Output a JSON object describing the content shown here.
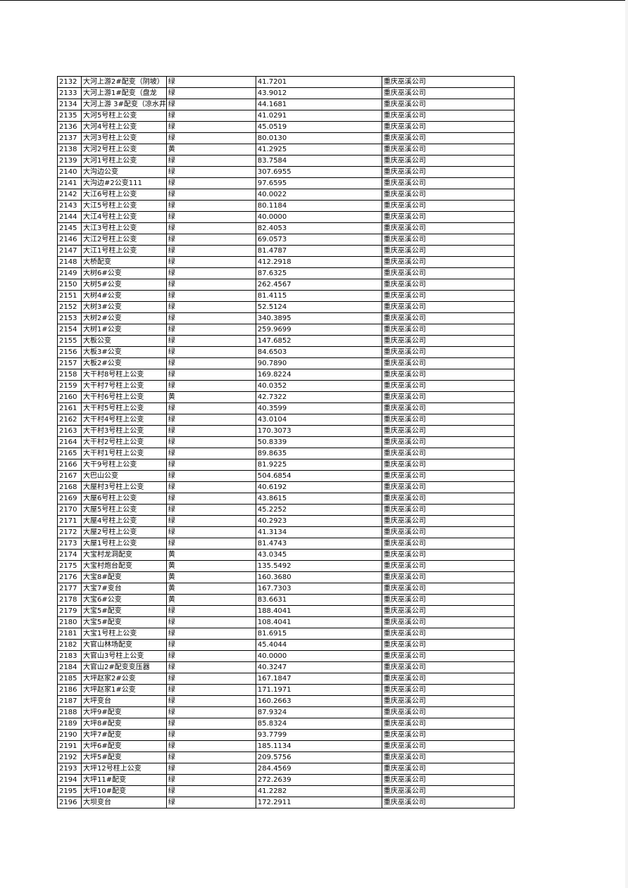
{
  "company": "重庆巫溪公司",
  "rows": [
    [
      "2132",
      "大河上游2#配变（阴坡）",
      "绿",
      "41.7201"
    ],
    [
      "2133",
      "大河上游1#配变（盘龙",
      "绿",
      "43.9012"
    ],
    [
      "2134",
      "大河上游 3#配变（凉水井",
      "绿",
      "44.1681"
    ],
    [
      "2135",
      "大河5号柱上公变",
      "绿",
      "41.0291"
    ],
    [
      "2136",
      "大河4号柱上公变",
      "绿",
      "45.0519"
    ],
    [
      "2137",
      "大河3号柱上公变",
      "绿",
      "80.0130"
    ],
    [
      "2138",
      "大河2号柱上公变",
      "黄",
      "41.2925"
    ],
    [
      "2139",
      "大河1号柱上公变",
      "绿",
      "83.7584"
    ],
    [
      "2140",
      "大沟边公变",
      "绿",
      "307.6955"
    ],
    [
      "2141",
      "大沟边#2公变111",
      "绿",
      "97.6595"
    ],
    [
      "2142",
      "大江6号柱上公变",
      "绿",
      "40.0022"
    ],
    [
      "2143",
      "大江5号柱上公变",
      "绿",
      "80.1184"
    ],
    [
      "2144",
      "大江4号柱上公变",
      "绿",
      "40.0000"
    ],
    [
      "2145",
      "大江3号柱上公变",
      "绿",
      "82.4053"
    ],
    [
      "2146",
      "大江2号柱上公变",
      "绿",
      "69.0573"
    ],
    [
      "2147",
      "大江1号柱上公变",
      "绿",
      "81.4787"
    ],
    [
      "2148",
      "大桥配变",
      "绿",
      "412.2918"
    ],
    [
      "2149",
      "大树6#公变",
      "绿",
      "87.6325"
    ],
    [
      "2150",
      "大树5#公变",
      "绿",
      "262.4567"
    ],
    [
      "2151",
      "大树4#公变",
      "绿",
      "81.4115"
    ],
    [
      "2152",
      "大树3#公变",
      "绿",
      "52.5124"
    ],
    [
      "2153",
      "大树2#公变",
      "绿",
      "340.3895"
    ],
    [
      "2154",
      "大树1#公变",
      "绿",
      "259.9699"
    ],
    [
      "2155",
      "大板公变",
      "绿",
      "147.6852"
    ],
    [
      "2156",
      "大板3#公变",
      "绿",
      "84.6503"
    ],
    [
      "2157",
      "大板2#公变",
      "绿",
      "90.7890"
    ],
    [
      "2158",
      "大干村8号柱上公变",
      "绿",
      "169.8224"
    ],
    [
      "2159",
      "大干村7号柱上公变",
      "绿",
      "40.0352"
    ],
    [
      "2160",
      "大干村6号柱上公变",
      "黄",
      "42.7322"
    ],
    [
      "2161",
      "大干村5号柱上公变",
      "绿",
      "40.3599"
    ],
    [
      "2162",
      "大干村4号柱上公变",
      "绿",
      "43.0104"
    ],
    [
      "2163",
      "大干村3号柱上公变",
      "绿",
      "170.3073"
    ],
    [
      "2164",
      "大干村2号柱上公变",
      "绿",
      "50.8339"
    ],
    [
      "2165",
      "大干村1号柱上公变",
      "绿",
      "89.8635"
    ],
    [
      "2166",
      "大干9号柱上公变",
      "绿",
      "81.9225"
    ],
    [
      "2167",
      "大巴山公变",
      "绿",
      "504.6854"
    ],
    [
      "2168",
      "大屋村3号柱上公变",
      "绿",
      "40.6192"
    ],
    [
      "2169",
      "大屋6号柱上公变",
      "绿",
      "43.8615"
    ],
    [
      "2170",
      "大屋5号柱上公变",
      "绿",
      "45.2252"
    ],
    [
      "2171",
      "大屋4号柱上公变",
      "绿",
      "40.2923"
    ],
    [
      "2172",
      "大屋2号柱上公变",
      "绿",
      "41.3134"
    ],
    [
      "2173",
      "大屋1号柱上公变",
      "绿",
      "81.4743"
    ],
    [
      "2174",
      "大宝村龙洞配变",
      "黄",
      "43.0345"
    ],
    [
      "2175",
      "大宝村炮台配变",
      "黄",
      "135.5492"
    ],
    [
      "2176",
      "大宝8#配变",
      "黄",
      "160.3680"
    ],
    [
      "2177",
      "大宝7#变台",
      "黄",
      "167.7303"
    ],
    [
      "2178",
      "大宝6#公变",
      "黄",
      "83.6631"
    ],
    [
      "2179",
      "大宝5#配变",
      "绿",
      "188.4041"
    ],
    [
      "2180",
      "大宝5#配变",
      "绿",
      "108.4041"
    ],
    [
      "2181",
      "大宝1号柱上公变",
      "绿",
      "81.6915"
    ],
    [
      "2182",
      "大官山林场配变",
      "绿",
      "45.4044"
    ],
    [
      "2183",
      "大官山3号柱上公变",
      "绿",
      "40.0000"
    ],
    [
      "2184",
      "大官山2#配变变压器",
      "绿",
      "40.3247"
    ],
    [
      "2185",
      "大坪赵家2#公变",
      "绿",
      "167.1847"
    ],
    [
      "2186",
      "大坪赵家1#公变",
      "绿",
      "171.1971"
    ],
    [
      "2187",
      "大坪变台",
      "绿",
      "160.2663"
    ],
    [
      "2188",
      "大坪9#配变",
      "绿",
      "87.9324"
    ],
    [
      "2189",
      "大坪8#配变",
      "绿",
      "85.8324"
    ],
    [
      "2190",
      "大坪7#配变",
      "绿",
      "93.7799"
    ],
    [
      "2191",
      "大坪6#配变",
      "绿",
      "185.1134"
    ],
    [
      "2192",
      "大坪5#配变",
      "绿",
      "209.5756"
    ],
    [
      "2193",
      "大坪12号柱上公变",
      "绿",
      "284.4569"
    ],
    [
      "2194",
      "大坪11#配变",
      "绿",
      "272.2639"
    ],
    [
      "2195",
      "大坪10#配变",
      "绿",
      "41.2282"
    ],
    [
      "2196",
      "大坝变台",
      "绿",
      "172.2911"
    ]
  ]
}
